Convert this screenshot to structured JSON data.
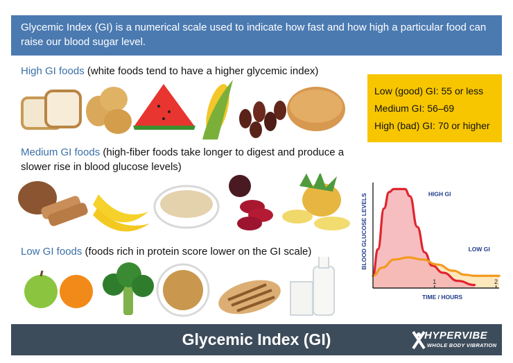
{
  "intro": "Glycemic Index (GI) is a numerical scale used to indicate how fast and how high a particular food can raise our blood sugar level.",
  "sections": {
    "high": {
      "heading": "High GI foods",
      "note": " (white foods tend to have a higher glycemic index)"
    },
    "medium": {
      "heading": "Medium GI foods",
      "note": " (high-fiber foods take longer to digest and produce a slower rise in blood glucose levels)"
    },
    "low": {
      "heading": "Low GI foods",
      "note": " (foods rich in protein score lower on the GI scale)"
    }
  },
  "gi_scale": {
    "low": "Low (good) GI: 55 or less",
    "medium": "Medium GI: 56–69",
    "high": "High (bad) GI: 70 or higher"
  },
  "chart_data": {
    "type": "area",
    "ylabel": "BLOOD GLUCOSE LEVELS",
    "xlabel": "TIME / HOURS",
    "x_ticks": [
      "1",
      "2"
    ],
    "xlim": [
      0,
      2.05
    ],
    "ylim": [
      0,
      1
    ],
    "series": [
      {
        "name": "HIGH GI",
        "color": "#e0242f",
        "fill": "#f4b3b5",
        "points": [
          [
            0,
            0.12
          ],
          [
            0.08,
            0.38
          ],
          [
            0.18,
            0.78
          ],
          [
            0.26,
            0.94
          ],
          [
            0.34,
            0.97
          ],
          [
            0.52,
            0.97
          ],
          [
            0.6,
            0.9
          ],
          [
            0.72,
            0.6
          ],
          [
            0.84,
            0.35
          ],
          [
            0.96,
            0.22
          ],
          [
            1.14,
            0.15
          ],
          [
            1.38,
            0.07
          ],
          [
            1.65,
            0.03
          ]
        ]
      },
      {
        "name": "LOW GI",
        "color": "#f29a1f",
        "fill": "#fde3b1",
        "points": [
          [
            0,
            0.12
          ],
          [
            0.15,
            0.2
          ],
          [
            0.35,
            0.28
          ],
          [
            0.58,
            0.3
          ],
          [
            0.8,
            0.28
          ],
          [
            1.05,
            0.23
          ],
          [
            1.3,
            0.17
          ],
          [
            1.5,
            0.13
          ],
          [
            1.65,
            0.12
          ],
          [
            2.05,
            0.12
          ]
        ]
      }
    ]
  },
  "footer": {
    "title": "Glycemic Index (GI)",
    "brand": "HYPERVIBE",
    "tagline": "WHOLE BODY VIBRATION"
  }
}
